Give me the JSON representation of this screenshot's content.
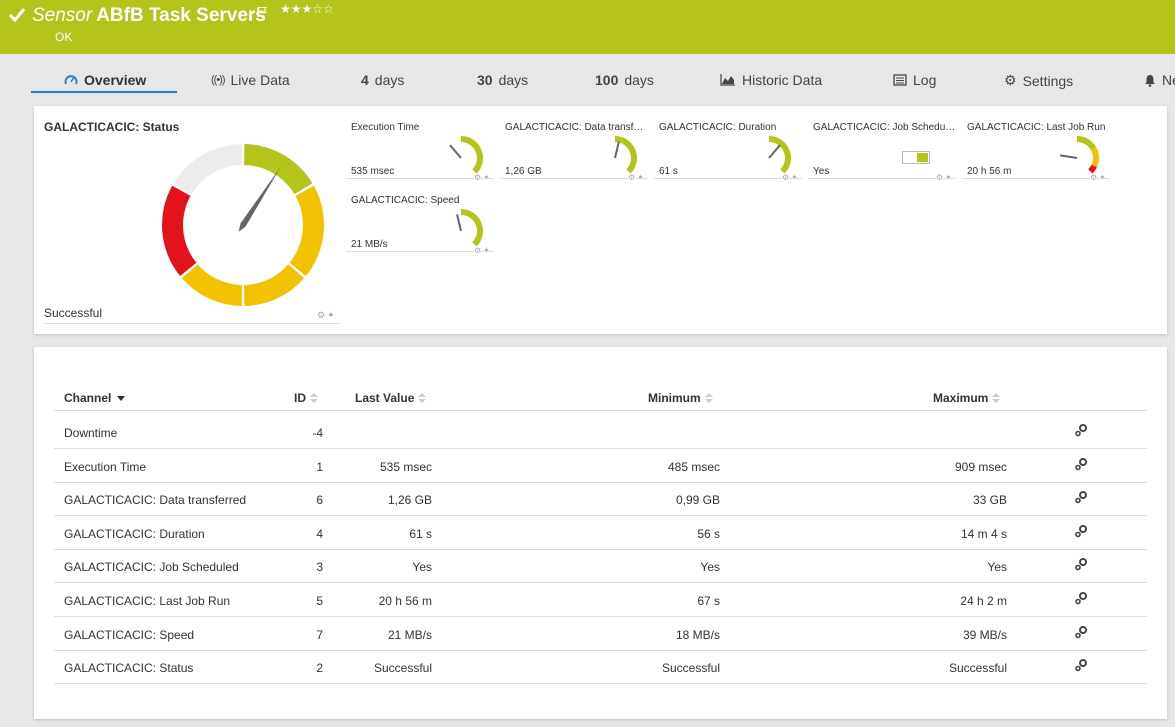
{
  "header": {
    "kind": "Sensor",
    "name": "ABfB Task Servers",
    "stars": "★★★☆☆",
    "status": "OK",
    "colors": {
      "background": "#b4c41b",
      "text": "#ffffff"
    }
  },
  "tabs": [
    {
      "label": "Overview",
      "icon": "overview-gauge-icon",
      "active": true
    },
    {
      "label": "Live Data",
      "icon": "live-data-icon"
    },
    {
      "number": "4",
      "label": "days"
    },
    {
      "number": "30",
      "label": "days"
    },
    {
      "number": "100",
      "label": "days"
    },
    {
      "label": "Historic Data",
      "icon": "area-chart-icon"
    },
    {
      "label": "Log",
      "icon": "log-icon"
    },
    {
      "label": "Settings",
      "icon": "gear-icon"
    },
    {
      "label": "Ne",
      "icon": "bell-icon"
    }
  ],
  "status_gauge": {
    "title": "GALACTICACIC: Status",
    "value": "Successful",
    "colors": {
      "ok": "#b4c41b",
      "warning": "#f2c200",
      "error": "#e3131b",
      "neutral": "#ececec",
      "needle": "#666666"
    }
  },
  "mini_gauges": [
    {
      "label": "Execution Time",
      "value": "535 msec",
      "level": 0.35
    },
    {
      "label": "GALACTICACIC: Data transfer…",
      "value": "1,26 GB",
      "level": 0.55
    },
    {
      "label": "GALACTICACIC: Duration",
      "value": "61 s",
      "level": 0.65
    },
    {
      "label": "GALACTICACIC: Job Schedul…",
      "value": "Yes",
      "toggle": true
    },
    {
      "label": "GALACTICACIC: Last Job Run",
      "value": "20 h 56 m",
      "level": 0.2
    },
    {
      "label": "GALACTICACIC: Speed",
      "value": "21 MB/s",
      "level": 0.45
    }
  ],
  "table": {
    "headers": {
      "channel": "Channel",
      "id": "ID",
      "last": "Last Value",
      "min": "Minimum",
      "max": "Maximum"
    },
    "rows": [
      {
        "channel": "Downtime",
        "id": "-4",
        "last": "",
        "min": "",
        "max": ""
      },
      {
        "channel": "Execution Time",
        "id": "1",
        "last": "535 msec",
        "min": "485 msec",
        "max": "909 msec"
      },
      {
        "channel": "GALACTICACIC: Data transferred",
        "id": "6",
        "last": "1,26 GB",
        "min": "0,99 GB",
        "max": "33 GB"
      },
      {
        "channel": "GALACTICACIC: Duration",
        "id": "4",
        "last": "61 s",
        "min": "56 s",
        "max": "14 m 4 s"
      },
      {
        "channel": "GALACTICACIC: Job Scheduled",
        "id": "3",
        "last": "Yes",
        "min": "Yes",
        "max": "Yes"
      },
      {
        "channel": "GALACTICACIC: Last Job Run",
        "id": "5",
        "last": "20 h 56 m",
        "min": "67 s",
        "max": "24 h 2 m"
      },
      {
        "channel": "GALACTICACIC: Speed",
        "id": "7",
        "last": "21 MB/s",
        "min": "18 MB/s",
        "max": "39 MB/s"
      },
      {
        "channel": "GALACTICACIC: Status",
        "id": "2",
        "last": "Successful",
        "min": "Successful",
        "max": "Successful"
      }
    ]
  }
}
